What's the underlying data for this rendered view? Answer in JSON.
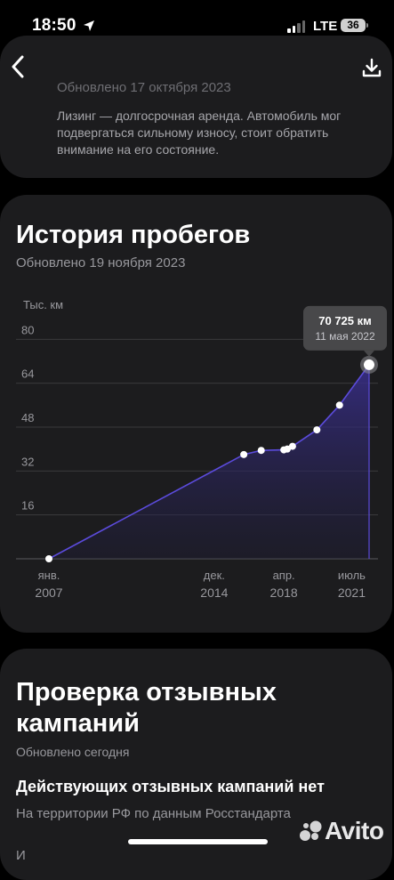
{
  "status_bar": {
    "time": "18:50",
    "network": "LTE",
    "battery": "36"
  },
  "previous_card": {
    "updated": "Обновлено 17 октября 2023",
    "lease_note": "Лизинг — долгосрочная аренда. Автомобиль мог подвергаться сильному износу, стоит обратить внимание на его состояние."
  },
  "mileage_card": {
    "title": "История пробегов",
    "updated": "Обновлено 19 ноября 2023",
    "tooltip": {
      "value": "70 725 км",
      "date": "11 мая 2022"
    }
  },
  "recall_card": {
    "title": "Проверка отзывных кампаний",
    "updated": "Обновлено сегодня",
    "status": "Действующих отзывных кампаний нет",
    "note": "На территории РФ по данным Росстандарта",
    "cut_text": "И"
  },
  "watermark": "Avito",
  "colors": {
    "accent": "#5b4bdb",
    "card_bg": "#1c1c1e",
    "background": "#000000"
  },
  "chart_data": {
    "type": "area",
    "ylabel": "Тыс. км",
    "y_ticks": [
      16,
      32,
      48,
      64,
      80
    ],
    "ylim": [
      0,
      84
    ],
    "x_ticks": [
      {
        "month": "янв.",
        "year": "2007",
        "date": "2007-01"
      },
      {
        "month": "дек.",
        "year": "2014",
        "date": "2014-12"
      },
      {
        "month": "апр.",
        "year": "2018",
        "date": "2018-04"
      },
      {
        "month": "июль",
        "year": "2021",
        "date": "2021-07"
      }
    ],
    "x_range": [
      "2007-01",
      "2022-05"
    ],
    "grid": true,
    "series": [
      {
        "points": [
          {
            "x": "2007-01",
            "y": 0
          },
          {
            "x": "2016-05",
            "y": 38
          },
          {
            "x": "2017-03",
            "y": 39.5
          },
          {
            "x": "2018-04",
            "y": 39.7
          },
          {
            "x": "2018-06",
            "y": 40
          },
          {
            "x": "2018-09",
            "y": 41
          },
          {
            "x": "2019-11",
            "y": 47
          },
          {
            "x": "2020-12",
            "y": 56
          },
          {
            "x": "2022-05",
            "y": 70.725
          }
        ]
      }
    ],
    "highlight": {
      "x": "2022-05",
      "y": 70.725
    }
  }
}
